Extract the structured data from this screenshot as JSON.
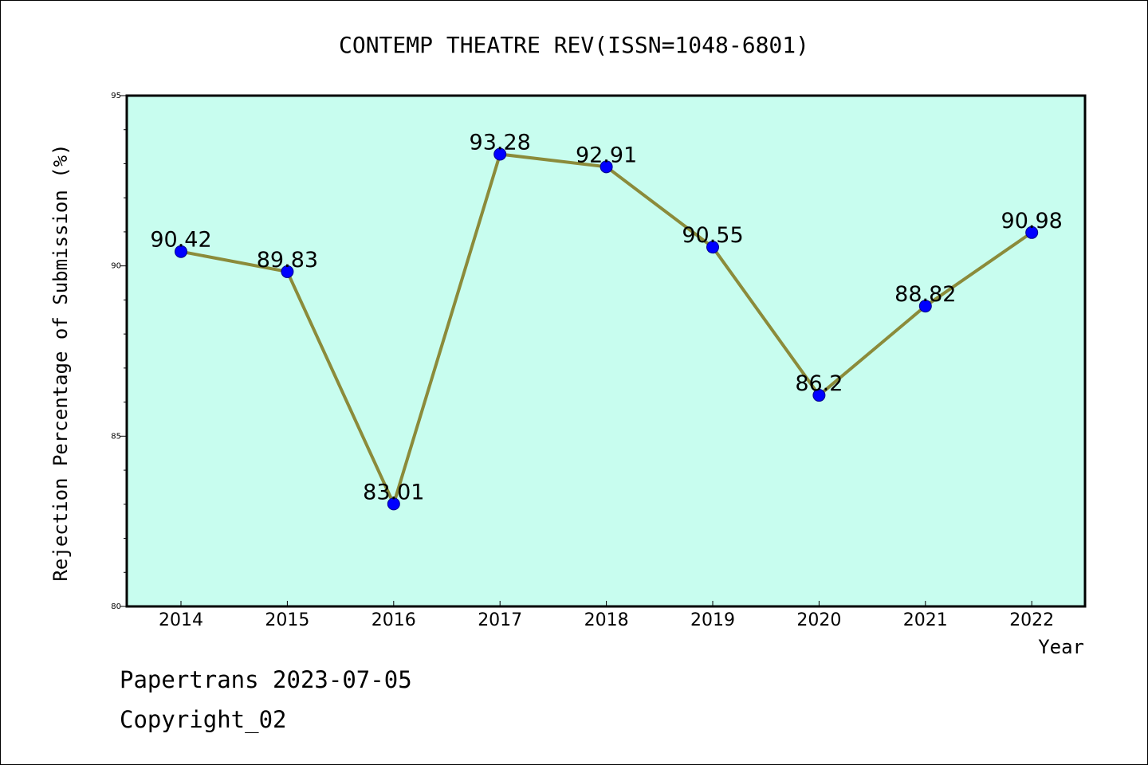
{
  "footer": {
    "line1": "Papertrans 2023-07-05",
    "line2": "Copyright_02"
  },
  "colors": {
    "plot_bg": "#c8fdef",
    "line": "#8b8b3a",
    "marker": "#0000ff"
  },
  "chart_data": {
    "type": "line",
    "title": "CONTEMP THEATRE REV(ISSN=1048-6801)",
    "xlabel": "Year",
    "ylabel": "Rejection Percentage of Submission (%)",
    "categories": [
      "2014",
      "2015",
      "2016",
      "2017",
      "2018",
      "2019",
      "2020",
      "2021",
      "2022"
    ],
    "values": [
      90.42,
      89.83,
      83.01,
      93.28,
      92.91,
      90.55,
      86.2,
      88.82,
      90.98
    ],
    "data_labels": [
      "90.42",
      "89.83",
      "83.01",
      "93.28",
      "92.91",
      "90.55",
      "86.2",
      "88.82",
      "90.98"
    ],
    "ylim": [
      80,
      95
    ],
    "yticks": [
      80,
      85,
      90,
      95
    ],
    "ytick_labels": [
      "80",
      "85",
      "90",
      "95"
    ],
    "grid": false,
    "legend": "none"
  }
}
